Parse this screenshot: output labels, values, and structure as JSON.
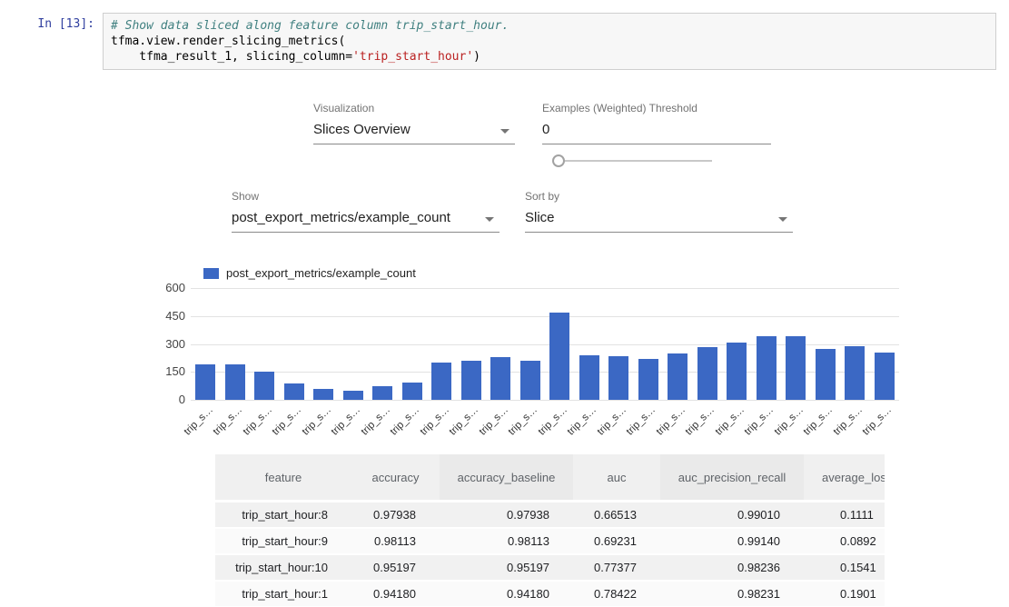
{
  "notebook": {
    "prompt": "In [13]:",
    "code": {
      "comment": "# Show data sliced along feature column trip_start_hour.",
      "call_line": "tfma.view.render_slicing_metrics(",
      "args_pre": "    tfma_result_1, slicing_column=",
      "args_string": "'trip_start_hour'",
      "args_post": ")"
    }
  },
  "controls": {
    "visualization": {
      "label": "Visualization",
      "value": "Slices Overview"
    },
    "threshold": {
      "label": "Examples (Weighted) Threshold",
      "value": "0"
    },
    "slider": {
      "value": 0
    },
    "show": {
      "label": "Show",
      "value": "post_export_metrics/example_count"
    },
    "sort_by": {
      "label": "Sort by",
      "value": "Slice"
    }
  },
  "chart_data": {
    "type": "bar",
    "title": "",
    "xlabel": "",
    "ylabel": "",
    "legend": "post_export_metrics/example_count",
    "legend_position": "top",
    "grid": true,
    "bar_color": "#3b68c4",
    "ylim": [
      0,
      600
    ],
    "yticks": [
      600,
      450,
      300,
      150,
      0
    ],
    "categories": [
      "trip_s…",
      "trip_s…",
      "trip_s…",
      "trip_s…",
      "trip_s…",
      "trip_s…",
      "trip_s…",
      "trip_s…",
      "trip_s…",
      "trip_s…",
      "trip_s…",
      "trip_s…",
      "trip_s…",
      "trip_s…",
      "trip_s…",
      "trip_s…",
      "trip_s…",
      "trip_s…",
      "trip_s…",
      "trip_s…",
      "trip_s…",
      "trip_s…",
      "trip_s…",
      "trip_s…"
    ],
    "values": [
      190,
      190,
      150,
      88,
      60,
      48,
      72,
      92,
      200,
      210,
      228,
      210,
      466,
      238,
      232,
      222,
      248,
      282,
      306,
      340,
      340,
      272,
      286,
      252
    ]
  },
  "table": {
    "headers": [
      "feature",
      "accuracy",
      "accuracy_baseline",
      "auc",
      "auc_precision_recall",
      "average_loss"
    ],
    "rows": [
      [
        "trip_start_hour:8",
        "0.97938",
        "0.97938",
        "0.66513",
        "0.99010",
        "0.1111"
      ],
      [
        "trip_start_hour:9",
        "0.98113",
        "0.98113",
        "0.69231",
        "0.99140",
        "0.0892"
      ],
      [
        "trip_start_hour:10",
        "0.95197",
        "0.95197",
        "0.77377",
        "0.98236",
        "0.1541"
      ],
      [
        "trip_start_hour:1",
        "0.94180",
        "0.94180",
        "0.78422",
        "0.98231",
        "0.1901"
      ]
    ]
  }
}
